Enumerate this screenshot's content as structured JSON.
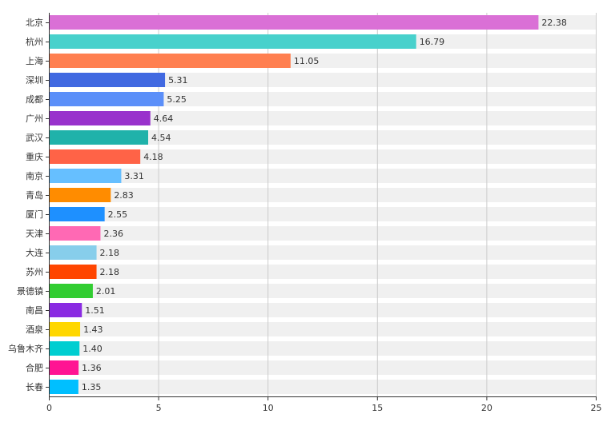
{
  "chart_data": {
    "type": "bar",
    "orientation": "horizontal",
    "categories": [
      "北京",
      "杭州",
      "上海",
      "深圳",
      "成都",
      "广州",
      "武汉",
      "重庆",
      "南京",
      "青岛",
      "厦门",
      "天津",
      "大连",
      "苏州",
      "景德镇",
      "南昌",
      "酒泉",
      "乌鲁木齐",
      "合肥",
      "长春"
    ],
    "values": [
      22.38,
      16.79,
      11.05,
      5.31,
      5.25,
      4.64,
      4.54,
      4.18,
      3.31,
      2.83,
      2.55,
      2.36,
      2.18,
      2.18,
      2.01,
      1.51,
      1.43,
      1.4,
      1.36,
      1.35
    ],
    "value_labels": [
      "22.38",
      "16.79",
      "11.05",
      "5.31",
      "5.25",
      "4.64",
      "4.54",
      "4.18",
      "3.31",
      "2.83",
      "2.55",
      "2.36",
      "2.18",
      "2.18",
      "2.01",
      "1.51",
      "1.43",
      "1.40",
      "1.36",
      "1.35"
    ],
    "colors": [
      "#DA70D6",
      "#48D1CC",
      "#FF7F50",
      "#4169E1",
      "#5B8FF9",
      "#9932CC",
      "#20B2AA",
      "#FF6347",
      "#66BFFF",
      "#FF8C00",
      "#1E90FF",
      "#FF69B4",
      "#87CEEB",
      "#FF4500",
      "#32CD32",
      "#8A2BE2",
      "#FFD700",
      "#00CED1",
      "#FF1493",
      "#00BFFF"
    ],
    "xlim": [
      0,
      25
    ],
    "xticks": [
      0,
      5,
      10,
      15,
      20,
      25
    ],
    "title": "",
    "xlabel": "",
    "ylabel": "",
    "grid": true,
    "background_band_color": "#F0F0F0",
    "grid_color": "#CCCCCC"
  }
}
